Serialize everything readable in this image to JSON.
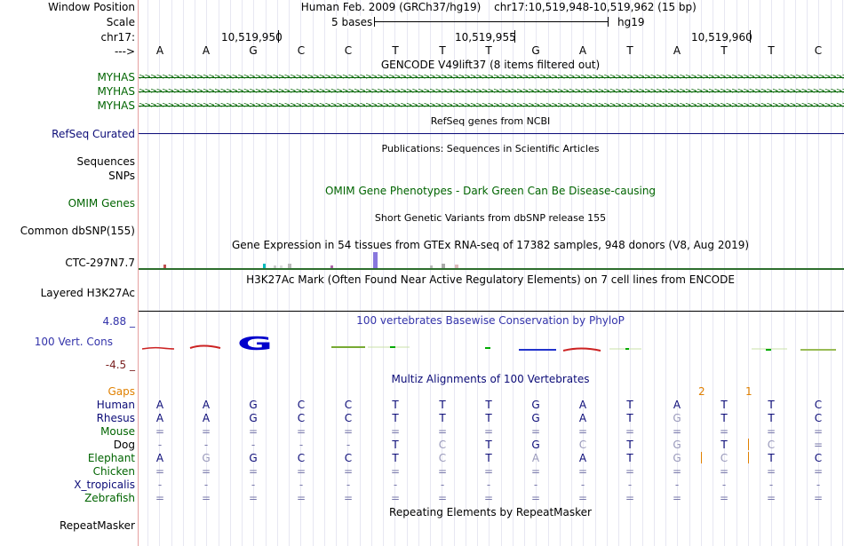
{
  "header": {
    "position_label": "Window Position",
    "scale_label": "Scale",
    "chrom_label": "chr17:",
    "arrow_label": "--->",
    "assembly": "Human Feb. 2009 (GRCh37/hg19)",
    "position": "chr17:10,519,948-10,519,962 (15 bp)",
    "scale_text": "5 bases",
    "db": "hg19",
    "coords": [
      "10,519,950",
      "10,519,955",
      "10,519,960"
    ]
  },
  "bases": [
    "A",
    "A",
    "G",
    "C",
    "C",
    "T",
    "T",
    "T",
    "G",
    "A",
    "T",
    "A",
    "T",
    "T",
    "C"
  ],
  "tracks": {
    "gencode": {
      "title": "GENCODE V49lift37 (8 items filtered out)",
      "items": [
        "MYHAS",
        "MYHAS",
        "MYHAS"
      ]
    },
    "refseq": {
      "title": "RefSeq genes from NCBI",
      "label": "RefSeq Curated"
    },
    "publications": {
      "title": "Publications: Sequences in Scientific Articles",
      "labels": [
        "Sequences",
        "SNPs"
      ]
    },
    "omim": {
      "title": "OMIM Gene Phenotypes - Dark Green Can Be Disease-causing",
      "label": "OMIM Genes"
    },
    "dbsnp": {
      "title": "Short Genetic Variants from dbSNP release 155",
      "label": "Common dbSNP(155)"
    },
    "gtex": {
      "title": "Gene Expression in 54 tissues from GTEx RNA-seq of 17382 samples, 948 donors (V8, Aug 2019)",
      "label": "CTC-297N7.7"
    },
    "h3k27ac": {
      "title": "H3K27Ac Mark (Often Found Near Active Regulatory Elements) on 7 cell lines from ENCODE",
      "label": "Layered H3K27Ac"
    },
    "phylop": {
      "title": "100 vertebrates Basewise Conservation by PhyloP",
      "label": "100 Vert. Cons",
      "max": "4.88 _",
      "min": "-4.5 _"
    },
    "multiz": {
      "title": "Multiz Alignments of 100 Vertebrates",
      "gaps_label": "Gaps",
      "gap_counts": [
        "2",
        "1"
      ]
    },
    "repeatmasker": {
      "title": "Repeating Elements by RepeatMasker",
      "label": "RepeatMasker"
    }
  },
  "alignment": [
    {
      "species": "Human",
      "seq": [
        "A",
        "A",
        "G",
        "C",
        "C",
        "T",
        "T",
        "T",
        "G",
        "A",
        "T",
        "A",
        "T",
        "T",
        "C"
      ]
    },
    {
      "species": "Rhesus",
      "seq": [
        "A",
        "A",
        "G",
        "C",
        "C",
        "T",
        "T",
        "T",
        "G",
        "A",
        "T",
        "G",
        "T",
        "T",
        "C"
      ]
    },
    {
      "species": "Mouse",
      "seq": [
        "=",
        "=",
        "=",
        "=",
        "=",
        "=",
        "=",
        "=",
        "=",
        "=",
        "=",
        "=",
        "=",
        "=",
        "="
      ]
    },
    {
      "species": "Dog",
      "seq": [
        "-",
        "-",
        "-",
        "-",
        "-",
        "T",
        "C",
        "T",
        "G",
        "C",
        "T",
        "G",
        "T",
        "C",
        "="
      ]
    },
    {
      "species": "Elephant",
      "seq": [
        "A",
        "G",
        "G",
        "C",
        "C",
        "T",
        "C",
        "T",
        "A",
        "A",
        "T",
        "G",
        "C",
        "T",
        "C"
      ]
    },
    {
      "species": "Chicken",
      "seq": [
        "=",
        "=",
        "=",
        "=",
        "=",
        "=",
        "=",
        "=",
        "=",
        "=",
        "=",
        "=",
        "=",
        "=",
        "="
      ]
    },
    {
      "species": "X_tropicalis",
      "seq": [
        "-",
        "-",
        "-",
        "-",
        "-",
        "-",
        "-",
        "-",
        "-",
        "-",
        "-",
        "-",
        "-",
        "-",
        "-"
      ]
    },
    {
      "species": "Zebrafish",
      "seq": [
        "=",
        "=",
        "=",
        "=",
        "=",
        "=",
        "=",
        "=",
        "=",
        "=",
        "=",
        "=",
        "=",
        "=",
        "="
      ]
    }
  ],
  "colors": {
    "gene_green": "#006400",
    "refseq_blue": "#0c0c78",
    "conservation_blue": "#3333aa",
    "min_red": "#7a2020",
    "gaps_orange": "#e08000"
  }
}
